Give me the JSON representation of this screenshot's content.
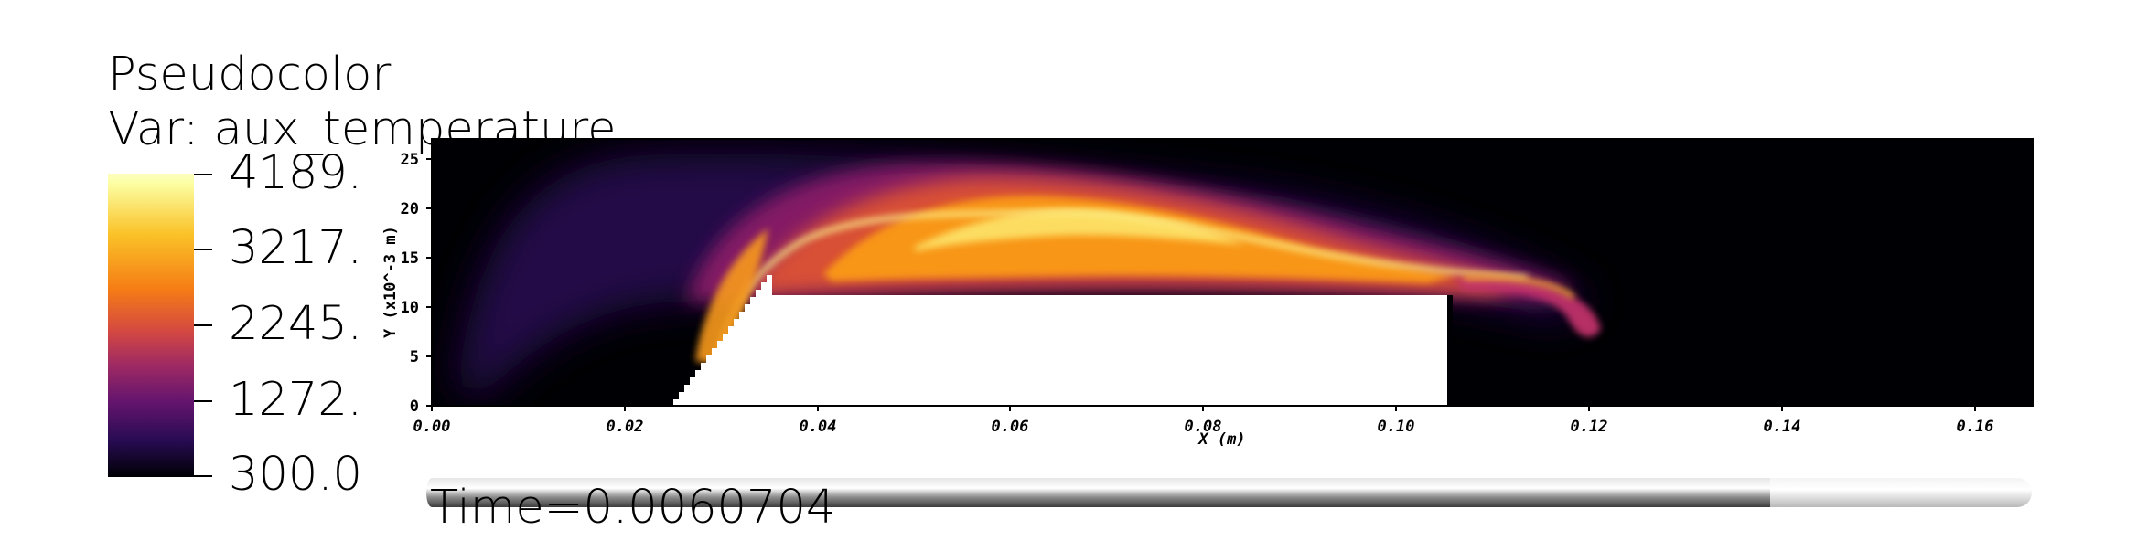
{
  "legend": {
    "title": "Pseudocolor",
    "var_label": "Var: aux_temperature",
    "colormap": "inferno",
    "ticks": [
      "4189.",
      "3217.",
      "2245.",
      "1272.",
      "300.0"
    ]
  },
  "time_label": "Time=0.0060704",
  "chart_data": {
    "type": "heatmap",
    "title": "",
    "variable": "aux_temperature",
    "xlabel": "X (m)",
    "ylabel": "Y (x10^-3 m)",
    "xlim": [
      0.0,
      0.166
    ],
    "ylim": [
      0,
      27
    ],
    "x_ticks": [
      "0.00",
      "0.02",
      "0.04",
      "0.06",
      "0.08",
      "0.10",
      "0.12",
      "0.14",
      "0.16"
    ],
    "y_ticks": [
      "0",
      "5",
      "10",
      "15",
      "20",
      "25"
    ],
    "value_range": [
      300.0,
      4189.0
    ],
    "obstacle": {
      "x_start": 0.026,
      "ramp_top_x": 0.036,
      "x_end": 0.105,
      "y_top": 11.5
    },
    "time_slider_fraction": 0.833
  }
}
